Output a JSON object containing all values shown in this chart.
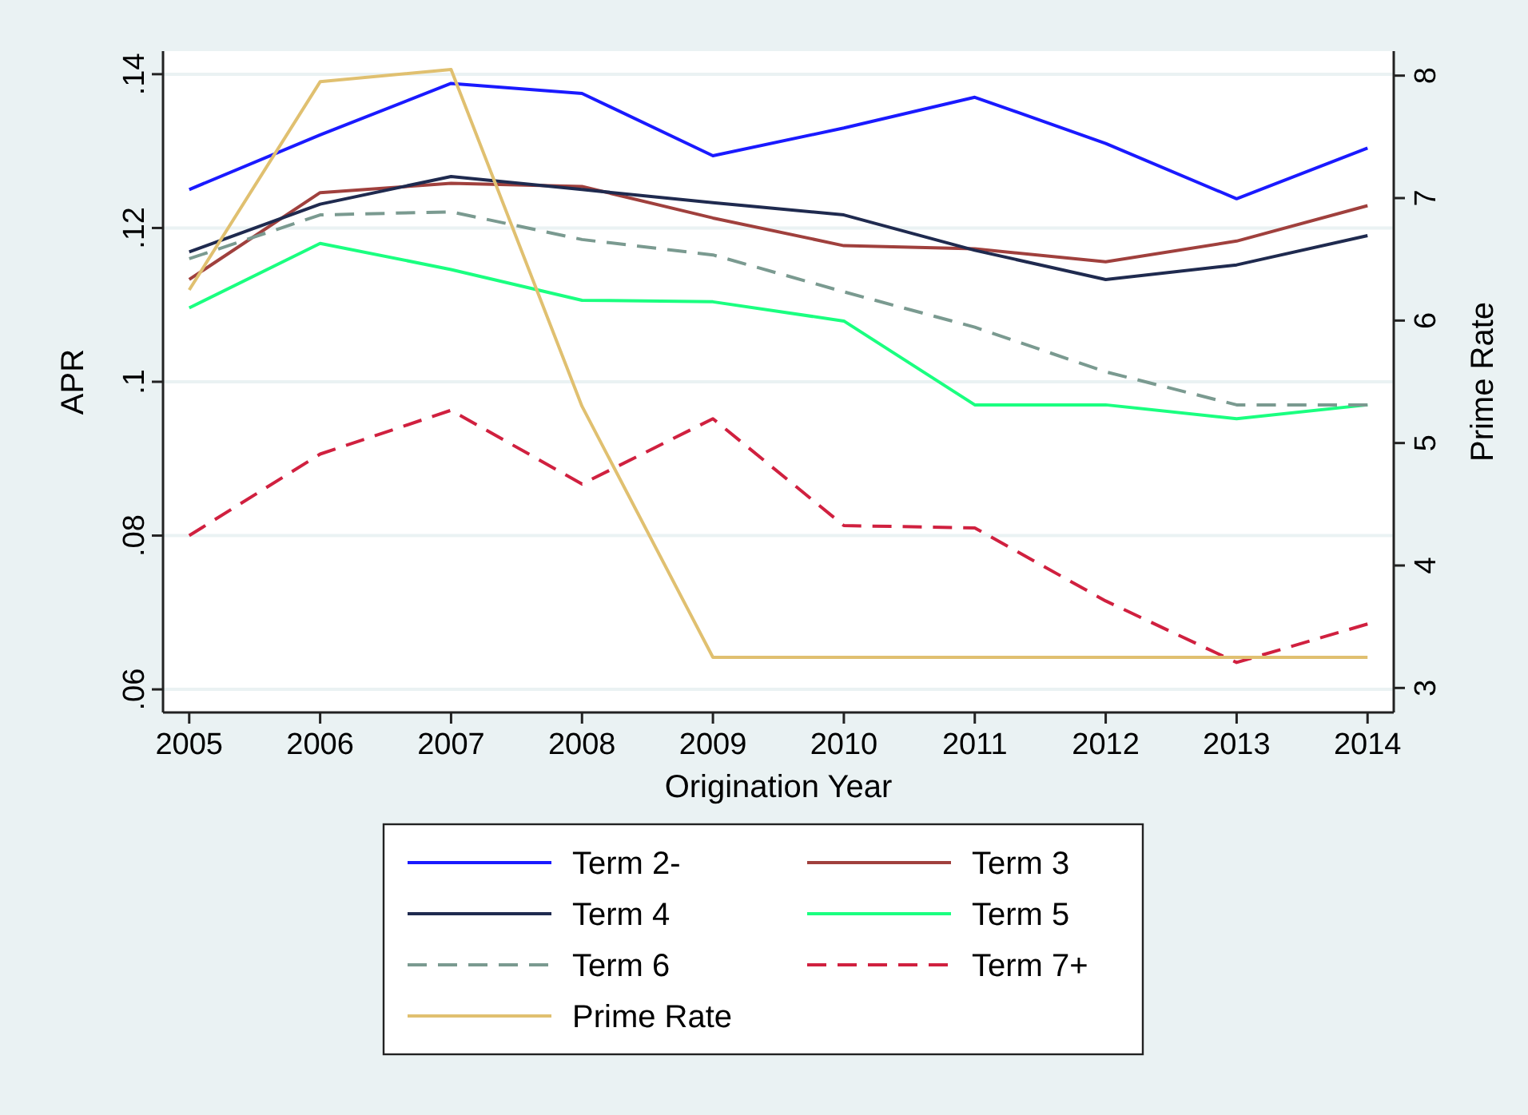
{
  "chart_data": {
    "type": "line",
    "xlabel": "Origination Year",
    "ylabel": "APR",
    "y2label": "Prime Rate",
    "x": [
      2005,
      2006,
      2007,
      2008,
      2009,
      2010,
      2011,
      2012,
      2013,
      2014
    ],
    "xlim": [
      2004.8,
      2014.2
    ],
    "xticks": [
      2005,
      2006,
      2007,
      2008,
      2009,
      2010,
      2011,
      2012,
      2013,
      2014
    ],
    "ylim": [
      0.057,
      0.143
    ],
    "yticks": [
      {
        "value": 0.06,
        "label": ".06"
      },
      {
        "value": 0.08,
        "label": ".08"
      },
      {
        "value": 0.1,
        "label": ".1"
      },
      {
        "value": 0.12,
        "label": ".12"
      },
      {
        "value": 0.14,
        "label": ".14"
      }
    ],
    "y2lim": [
      2.8,
      8.2
    ],
    "y2ticks": [
      3,
      4,
      5,
      6,
      7,
      8
    ],
    "grid": "y",
    "legend": "bottom",
    "marker": "none",
    "series": [
      {
        "name": "Term 2-",
        "color": "#1a1aff",
        "line_style": "solid",
        "values": [
          0.125,
          0.1321,
          0.1388,
          0.1375,
          0.1294,
          0.133,
          0.137,
          0.131,
          0.1238,
          0.1304
        ]
      },
      {
        "name": "Term 3",
        "color": "#a0403d",
        "line_style": "solid",
        "values": [
          0.1133,
          0.1246,
          0.1258,
          0.1254,
          0.1213,
          0.1177,
          0.1173,
          0.1156,
          0.1183,
          0.1229
        ]
      },
      {
        "name": "Term 4",
        "color": "#1f2a4f",
        "line_style": "solid",
        "values": [
          0.1169,
          0.1231,
          0.1267,
          0.125,
          0.1233,
          0.1217,
          0.1171,
          0.1133,
          0.1152,
          0.119
        ]
      },
      {
        "name": "Term 5",
        "color": "#1aff80",
        "line_style": "solid",
        "values": [
          0.1096,
          0.118,
          0.1146,
          0.1106,
          0.1104,
          0.1079,
          0.097,
          0.097,
          0.0952,
          0.097
        ]
      },
      {
        "name": "Term 6",
        "color": "#7a9a90",
        "line_style": "dashed",
        "values": [
          0.116,
          0.1217,
          0.1221,
          0.1185,
          0.1165,
          0.1117,
          0.1071,
          0.1013,
          0.097,
          0.097
        ]
      },
      {
        "name": "Term 7+",
        "color": "#d0203f",
        "line_style": "dashed",
        "values": [
          0.08,
          0.0906,
          0.0963,
          0.0867,
          0.0952,
          0.0813,
          0.081,
          0.0715,
          0.0635,
          0.0685
        ]
      },
      {
        "name": "Prime Rate",
        "color": "#e0c070",
        "line_style": "solid",
        "axis": "y2",
        "values": [
          6.25,
          7.95,
          8.05,
          5.3,
          3.25,
          3.25,
          3.25,
          3.25,
          3.25,
          3.25
        ]
      }
    ]
  }
}
